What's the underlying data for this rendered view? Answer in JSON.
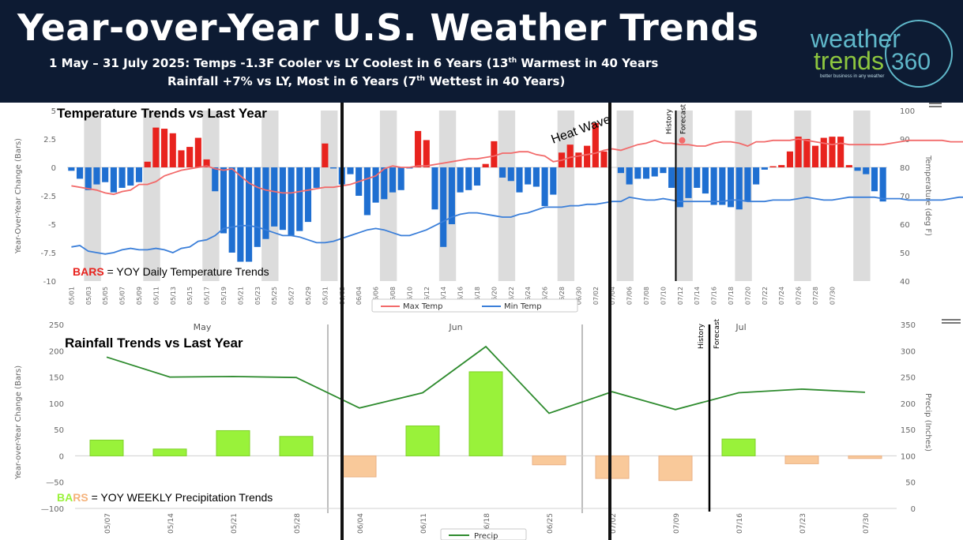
{
  "header": {
    "title": "Year-over-Year U.S. Weather Trends",
    "subtitle1_pre": "1 May – 31 July 2025: Temps -1.3F Cooler vs LY Coolest in 6 Years (13",
    "subtitle1_sup": "th",
    "subtitle1_post": " Warmest in 40 Years",
    "subtitle2_pre": "Rainfall +7% vs LY, Most in 6 Years (7",
    "subtitle2_sup": "th",
    "subtitle2_post": " Wettest in 40 Years)",
    "logo_line1": "weather",
    "logo_line2": "trends",
    "logo_num": "360",
    "logo_tagline": "better business in any weather",
    "colors": {
      "background": "#0d1b33",
      "logo_green": "#8dc63f",
      "logo_teal": "#5fb7c9"
    }
  },
  "chart_data": [
    {
      "type": "bar",
      "title": "Temperature Trends vs Last Year",
      "ylabel": "Year-Over-Year Change (Bars)",
      "y2label": "Temperature (deg F)",
      "ylim": [
        -10,
        5
      ],
      "yticks": [
        5,
        2.5,
        0,
        -2.5,
        -5,
        -7.5,
        -10
      ],
      "ytick_labels": [
        "5",
        "2.5",
        "0",
        "-2.5",
        "-5",
        "-7.5",
        "-10"
      ],
      "y2lim": [
        40,
        100
      ],
      "y2ticks": [
        100,
        90,
        80,
        70,
        60,
        50,
        40
      ],
      "x_start": "05/01",
      "x_tick_labels": [
        "05/01",
        "05/03",
        "05/05",
        "05/07",
        "05/09",
        "05/11",
        "05/13",
        "05/15",
        "05/17",
        "05/19",
        "05/21",
        "05/23",
        "05/25",
        "05/27",
        "05/29",
        "05/31",
        "06/02",
        "06/04",
        "06/06",
        "06/08",
        "06/10",
        "06/12",
        "06/14",
        "06/16",
        "06/18",
        "06/20",
        "06/22",
        "06/24",
        "06/26",
        "06/28",
        "06/30",
        "07/02",
        "07/04",
        "07/06",
        "07/08",
        "07/10",
        "07/12",
        "07/14",
        "07/16",
        "07/18",
        "07/20",
        "07/22",
        "07/24",
        "07/26",
        "07/28",
        "07/30"
      ],
      "series": [
        {
          "name": "YOY Daily Temperature Trends",
          "type": "bar",
          "values": [
            -0.3,
            -1.0,
            -2.0,
            -1.5,
            -1.3,
            -2.2,
            -1.8,
            -1.6,
            -1.3,
            0.5,
            3.5,
            3.4,
            3.0,
            1.5,
            1.8,
            2.6,
            0.7,
            -2.1,
            -5.8,
            -7.5,
            -8.3,
            -8.3,
            -7.0,
            -6.3,
            -5.2,
            -5.5,
            -6.0,
            -5.6,
            -4.8,
            -1.8,
            2.1,
            -0.1,
            -1.5,
            -0.6,
            -2.5,
            -4.2,
            -3.1,
            -2.8,
            -2.2,
            -2.0,
            -0.1,
            3.2,
            2.4,
            -3.7,
            -7.0,
            -5.0,
            -2.2,
            -2.0,
            -1.6,
            0.3,
            2.3,
            -0.9,
            -1.2,
            -2.2,
            -1.5,
            -1.7,
            -3.4,
            -2.4,
            1.3,
            2.0,
            1.3,
            1.9,
            3.9,
            1.4,
            0.0,
            -0.5,
            -1.5,
            -1.0,
            -1.0,
            -0.8,
            -0.5,
            -1.8,
            -3.5,
            -2.7,
            -1.8,
            -2.3,
            -3.3,
            -3.3,
            -3.5,
            -3.7,
            -3.0,
            -1.5,
            -0.2,
            0.1,
            0.2,
            1.4,
            2.7,
            2.5,
            1.9,
            2.6,
            2.7,
            2.7,
            0.2,
            -0.3,
            -0.6,
            -2.1,
            -3.0
          ]
        },
        {
          "name": "Max Temp",
          "type": "line",
          "color": "#f26b6b",
          "values": [
            73.5,
            73,
            72.5,
            72,
            71,
            70.5,
            71.5,
            72,
            74,
            74,
            75,
            77,
            78,
            79,
            79.5,
            80,
            80.5,
            79.5,
            79,
            79.5,
            77,
            74.5,
            73,
            72,
            71.5,
            71,
            71,
            71.5,
            72,
            72.5,
            73,
            73,
            73.5,
            74,
            75,
            76,
            77,
            79.5,
            80.5,
            80,
            80,
            80.5,
            80.5,
            81,
            81.5,
            82,
            82.5,
            83,
            83,
            83.5,
            84,
            85,
            85,
            85.5,
            85.5,
            84.5,
            84,
            82,
            82.5,
            83.5,
            84,
            84.5,
            85,
            86,
            86.5,
            86,
            87,
            88,
            88.5,
            89.5,
            88.5,
            88.5,
            88,
            88,
            87.5,
            87.5,
            88.5,
            89,
            89,
            88.5,
            87.5,
            89,
            89,
            89.5,
            89.5,
            89.5,
            90,
            89.5,
            89,
            88.5,
            88,
            88.5,
            88,
            88,
            88,
            88,
            88,
            88.5,
            89,
            89.5,
            89.5,
            89.5,
            89.5,
            89.5,
            89,
            89,
            89,
            89.5,
            89.5,
            89.5,
            89,
            89,
            89.5,
            89.5
          ]
        },
        {
          "name": "Min Temp",
          "type": "line",
          "color": "#3b7fd9",
          "values": [
            52,
            52.5,
            50.5,
            50,
            49.5,
            50,
            51,
            51.5,
            51,
            51,
            51.5,
            51,
            50,
            51.5,
            52,
            54,
            54.5,
            56,
            58.5,
            59,
            59.5,
            59.5,
            59,
            58,
            57,
            56,
            56,
            55.5,
            54.5,
            53.5,
            53.5,
            54,
            55,
            56,
            57,
            58,
            58.5,
            58,
            57,
            56,
            56,
            57,
            58,
            59.5,
            61,
            62.5,
            63.5,
            64,
            64,
            63.5,
            63,
            62.5,
            62.5,
            63.5,
            64,
            65,
            66,
            66,
            66,
            66.5,
            66.5,
            67,
            67,
            67.5,
            68,
            68,
            69.5,
            69,
            68.5,
            68.5,
            69,
            68.5,
            68,
            68,
            68,
            68,
            68,
            68,
            68.5,
            68.5,
            68,
            68,
            68,
            68.5,
            68.5,
            68.5,
            69,
            69.5,
            69,
            68.5,
            68.5,
            69,
            69.5,
            69.5,
            69.5,
            69.5,
            69,
            69,
            69,
            68.5,
            68.5,
            68.5,
            68.5,
            68.5,
            69,
            69.5,
            69.5,
            69.5,
            67.5,
            67.5,
            67.5,
            68,
            68
          ]
        }
      ],
      "legend": [
        "Max Temp",
        "Min Temp"
      ],
      "legend_placement": "bottom-center",
      "bars_label_word": "BARS",
      "bars_label_rest": " = YOY Daily Temperature Trends",
      "annotations": [
        "Heat Wave",
        "History",
        "Forecast"
      ],
      "grid": false
    },
    {
      "type": "bar",
      "title": "Rainfall Trends vs Last Year",
      "ylabel": "Year-over-Year Change (Bars)",
      "y2label": "Precip (Inches)",
      "ylim": [
        -100,
        250
      ],
      "yticks": [
        250,
        200,
        150,
        100,
        50,
        0,
        -50,
        -100
      ],
      "ytick_labels": [
        "250",
        "200",
        "150",
        "100",
        "50",
        "0",
        "—50",
        "—100"
      ],
      "y2lim": [
        0,
        350
      ],
      "y2ticks": [
        350,
        300,
        250,
        200,
        150,
        100,
        50,
        0
      ],
      "months": [
        "May",
        "Jun",
        "Jul"
      ],
      "categories": [
        "05/07",
        "05/14",
        "05/21",
        "05/28",
        "06/04",
        "06/11",
        "06/18",
        "06/25",
        "07/02",
        "07/09",
        "07/16",
        "07/23",
        "07/30"
      ],
      "series": [
        {
          "name": "YOY WEEKLY Precipitation Trends",
          "type": "bar",
          "values": [
            30,
            13,
            48,
            37,
            -40,
            57,
            160,
            -17,
            -43,
            -47,
            32,
            -15,
            -5
          ]
        },
        {
          "name": "Precip",
          "type": "line",
          "color": "#2e8b2e",
          "values": [
            288,
            250,
            251,
            249,
            191,
            220,
            308,
            181,
            222,
            188,
            220,
            227,
            221
          ]
        }
      ],
      "legend": [
        "Precip"
      ],
      "legend_placement": "bottom-center",
      "bars_label_word": "BARS",
      "bars_label_rest": " = YOY WEEKLY Precipitation Trends",
      "annotations": [
        "History",
        "Forecast"
      ],
      "grid": false
    }
  ],
  "colors": {
    "temp_up": "#e8231e",
    "temp_down": "#1f6fd1",
    "rain_up": "#99f23a",
    "rain_down": "#f9c99a",
    "band": "#dcdcdc",
    "axis_text": "#666666"
  }
}
